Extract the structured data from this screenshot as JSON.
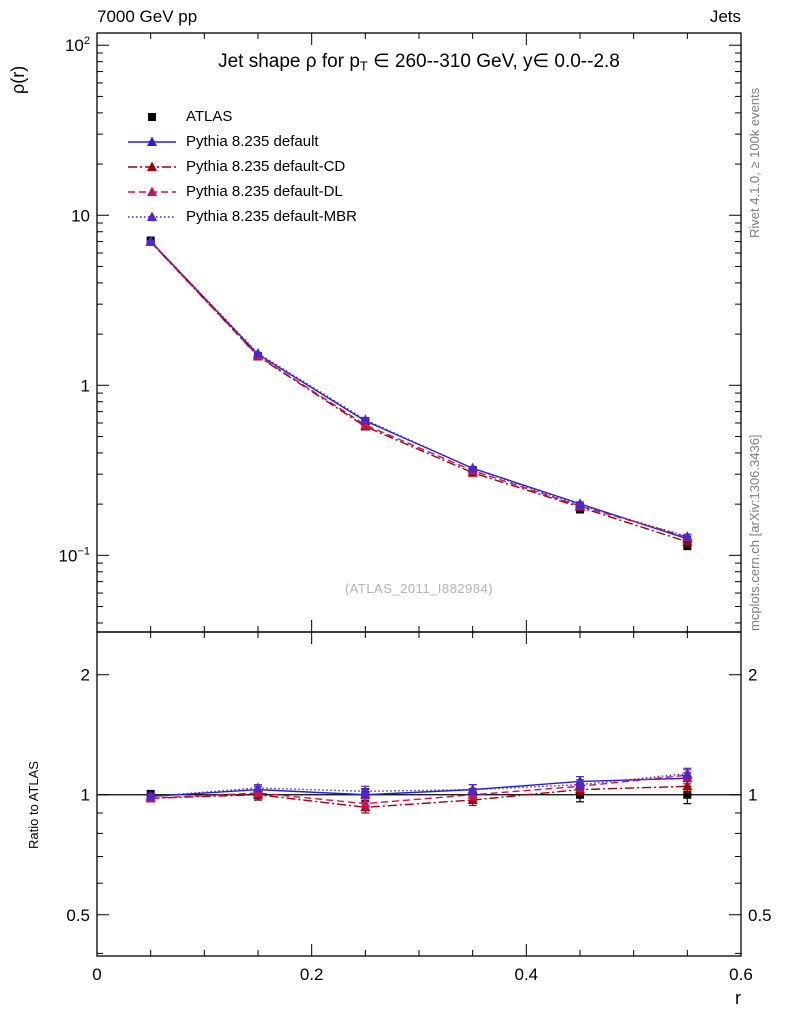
{
  "page": {
    "header_left": "7000 GeV pp",
    "header_right": "Jets",
    "watermark": "(ATLAS_2011_I882984)",
    "caption_right_top": "Rivet 4.1.0, ≥ 100k events",
    "caption_right_bottom": "mcplots.cern.ch [arXiv:1306.3436]"
  },
  "chart_data": {
    "type": "line",
    "title": "Jet shape ρ for p_T ∈ 260--310 GeV, y∈ 0.0--2.8",
    "title_parts": {
      "before_sub": "Jet shape ρ for p",
      "sub": "T",
      "after_sub": " ∈ 260--310 GeV, y∈ 0.0--2.8"
    },
    "xlabel": "r",
    "ylabel": "ρ(r)",
    "ratio_ylabel": "Ratio to ATLAS",
    "legend_position": "top-left",
    "grid": false,
    "x": [
      0.05,
      0.15,
      0.25,
      0.35,
      0.45,
      0.55
    ],
    "xlim": [
      0,
      0.6
    ],
    "xticks": [
      {
        "value": 0,
        "label": "0"
      },
      {
        "value": 0.2,
        "label": "0.2"
      },
      {
        "value": 0.4,
        "label": "0.4"
      },
      {
        "value": 0.6,
        "label": "0.6"
      }
    ],
    "x_minor_step": 0.05,
    "main_panel": {
      "ylog": true,
      "ylim": [
        0.0354,
        118
      ],
      "yticks": [
        {
          "value": 100,
          "base": "10",
          "sup": "2"
        },
        {
          "value": 10,
          "base": "10",
          "sup": ""
        },
        {
          "value": 1,
          "base": "1",
          "sup": ""
        },
        {
          "value": 0.1,
          "base": "10",
          "sup": "−1"
        }
      ]
    },
    "ratio_panel": {
      "ylog": true,
      "ylim": [
        0.394,
        2.56
      ],
      "yticks": [
        {
          "value": 2,
          "label": "2"
        },
        {
          "value": 1,
          "label": "1"
        },
        {
          "value": 0.5,
          "label": "0.5"
        }
      ],
      "reference_line": 1
    },
    "series": [
      {
        "name": "ATLAS",
        "color": "#000000",
        "marker": "square",
        "line": "none",
        "values": [
          7.1,
          1.48,
          0.615,
          0.315,
          0.186,
          0.114
        ],
        "errors": [
          0.18,
          0.05,
          0.022,
          0.012,
          0.008,
          0.006
        ],
        "ratio": [
          1,
          1,
          1,
          1,
          1,
          1
        ],
        "ratio_errors": [
          0.025,
          0.03,
          0.035,
          0.035,
          0.04,
          0.05
        ]
      },
      {
        "name": "Pythia 8.235 default",
        "color": "#2323cc",
        "marker": "triangle",
        "line": "solid",
        "values": [
          7.03,
          1.52,
          0.617,
          0.325,
          0.201,
          0.125
        ],
        "errors": [
          0.06,
          0.02,
          0.012,
          0.007,
          0.005,
          0.004
        ],
        "ratio": [
          0.99,
          1.03,
          1.0,
          1.03,
          1.08,
          1.1
        ],
        "ratio_errors": [
          0.02,
          0.02,
          0.03,
          0.03,
          0.03,
          0.035
        ]
      },
      {
        "name": "Pythia 8.235 default-CD",
        "color": "#a00000",
        "marker": "triangle",
        "line": "dashdot",
        "values": [
          6.96,
          1.48,
          0.572,
          0.306,
          0.192,
          0.12
        ],
        "errors": [
          0.06,
          0.02,
          0.012,
          0.007,
          0.005,
          0.004
        ],
        "ratio": [
          0.98,
          1.0,
          0.93,
          0.97,
          1.03,
          1.05
        ],
        "ratio_errors": [
          0.02,
          0.02,
          0.03,
          0.03,
          0.03,
          0.035
        ]
      },
      {
        "name": "Pythia 8.235 default-DL",
        "color": "#cc1155",
        "marker": "triangle",
        "line": "dashed",
        "values": [
          6.96,
          1.49,
          0.584,
          0.315,
          0.195,
          0.128
        ],
        "errors": [
          0.06,
          0.02,
          0.012,
          0.007,
          0.005,
          0.004
        ],
        "ratio": [
          0.98,
          1.01,
          0.95,
          1.0,
          1.05,
          1.12
        ],
        "ratio_errors": [
          0.02,
          0.02,
          0.03,
          0.03,
          0.03,
          0.035
        ]
      },
      {
        "name": "Pythia 8.235 default-MBR",
        "color": "#4d26cf",
        "marker": "triangle",
        "line": "dotted",
        "values": [
          7.03,
          1.54,
          0.627,
          0.324,
          0.197,
          0.129
        ],
        "errors": [
          0.06,
          0.02,
          0.012,
          0.007,
          0.005,
          0.004
        ],
        "ratio": [
          0.99,
          1.04,
          1.02,
          1.03,
          1.06,
          1.13
        ],
        "ratio_errors": [
          0.02,
          0.02,
          0.03,
          0.03,
          0.03,
          0.035
        ]
      }
    ]
  }
}
